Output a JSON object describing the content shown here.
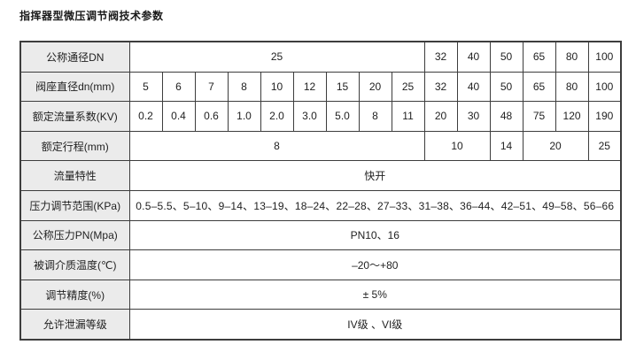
{
  "page_title": "指挥器型微压调节阀技术参数",
  "table": {
    "columns": {
      "label_width": 123,
      "data_col_width": 37,
      "data_col_count": 15
    },
    "rows": [
      {
        "label": "公称通径DN",
        "cells": [
          {
            "t": "25",
            "span": 9
          },
          {
            "t": "32"
          },
          {
            "t": "40"
          },
          {
            "t": "50"
          },
          {
            "t": "65"
          },
          {
            "t": "80"
          },
          {
            "t": "100"
          }
        ]
      },
      {
        "label": "阀座直径dn(mm)",
        "cells": [
          {
            "t": "5"
          },
          {
            "t": "6"
          },
          {
            "t": "7"
          },
          {
            "t": "8"
          },
          {
            "t": "10"
          },
          {
            "t": "12"
          },
          {
            "t": "15"
          },
          {
            "t": "20"
          },
          {
            "t": "25"
          },
          {
            "t": "32"
          },
          {
            "t": "40"
          },
          {
            "t": "50"
          },
          {
            "t": "65"
          },
          {
            "t": "80"
          },
          {
            "t": "100"
          }
        ]
      },
      {
        "label": "额定流量系数(KV)",
        "cells": [
          {
            "t": "0.2"
          },
          {
            "t": "0.4"
          },
          {
            "t": "0.6"
          },
          {
            "t": "1.0"
          },
          {
            "t": "2.0"
          },
          {
            "t": "3.0"
          },
          {
            "t": "5.0"
          },
          {
            "t": "8"
          },
          {
            "t": "11"
          },
          {
            "t": "20"
          },
          {
            "t": "30"
          },
          {
            "t": "48"
          },
          {
            "t": "75"
          },
          {
            "t": "120"
          },
          {
            "t": "190"
          }
        ]
      },
      {
        "label": "额定行程(mm)",
        "cells": [
          {
            "t": "8",
            "span": 9
          },
          {
            "t": "10",
            "span": 2
          },
          {
            "t": "14"
          },
          {
            "t": "20",
            "span": 2
          },
          {
            "t": "25"
          }
        ]
      },
      {
        "label": "流量特性",
        "cells": [
          {
            "t": "快开",
            "span": 15
          }
        ]
      },
      {
        "label": "压力调节范围(KPa)",
        "cells": [
          {
            "t": "0.5–5.5、5–10、9–14、13–19、18–24、22–28、27–33、31–38、36–44、42–51、49–58、56–66",
            "span": 15
          }
        ]
      },
      {
        "label": "公称压力PN(Mpa)",
        "cells": [
          {
            "t": "PN10、16",
            "span": 15
          }
        ]
      },
      {
        "label": "被调介质温度(℃)",
        "cells": [
          {
            "t": "–20～+80",
            "span": 15
          }
        ]
      },
      {
        "label": "调节精度(%)",
        "cells": [
          {
            "t": "± 5%",
            "span": 15
          }
        ]
      },
      {
        "label": "允许泄漏等级",
        "cells": [
          {
            "t": "IV级 、VI级",
            "span": 15
          }
        ]
      }
    ]
  },
  "colors": {
    "label_bg": "#ebebeb",
    "border": "#3d3d3d",
    "text": "#1f1f1f"
  }
}
